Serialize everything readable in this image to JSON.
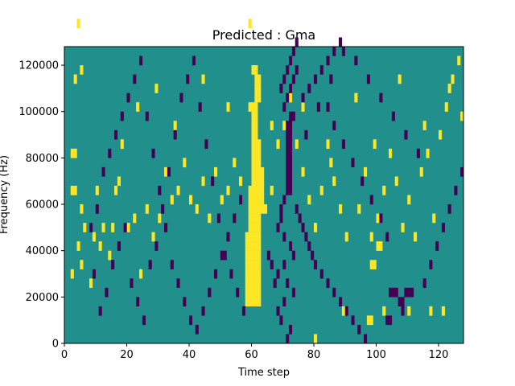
{
  "chart_data": {
    "type": "heatmap",
    "title": "Predicted : Gma",
    "xlabel": "Time step",
    "ylabel": "Frequency (Hz)",
    "xlim": [
      0,
      128
    ],
    "ylim": [
      0,
      128000
    ],
    "x_ticks": [
      0,
      20,
      40,
      60,
      80,
      100,
      120
    ],
    "y_ticks": [
      0,
      20000,
      40000,
      60000,
      80000,
      100000,
      120000
    ],
    "x_tick_labels": [
      "0",
      "20",
      "40",
      "60",
      "80",
      "100",
      "120"
    ],
    "y_tick_labels": [
      "0",
      "20000",
      "40000",
      "60000",
      "80000",
      "100000",
      "120000"
    ],
    "colormap": "viridis",
    "colors": {
      "background": "#21908d",
      "high": "#fde725",
      "low": "#440154"
    },
    "y_bin_size": 4000,
    "yellow_cells": [
      [
        58,
        4
      ],
      [
        59,
        4
      ],
      [
        60,
        4
      ],
      [
        61,
        4
      ],
      [
        62,
        4
      ],
      [
        58,
        5
      ],
      [
        59,
        5
      ],
      [
        60,
        5
      ],
      [
        61,
        5
      ],
      [
        62,
        5
      ],
      [
        58,
        6
      ],
      [
        59,
        6
      ],
      [
        60,
        6
      ],
      [
        61,
        6
      ],
      [
        62,
        6
      ],
      [
        58,
        7
      ],
      [
        59,
        7
      ],
      [
        60,
        7
      ],
      [
        61,
        7
      ],
      [
        62,
        7
      ],
      [
        58,
        8
      ],
      [
        59,
        8
      ],
      [
        60,
        8
      ],
      [
        61,
        8
      ],
      [
        62,
        8
      ],
      [
        58,
        9
      ],
      [
        59,
        9
      ],
      [
        60,
        9
      ],
      [
        61,
        9
      ],
      [
        62,
        9
      ],
      [
        58,
        10
      ],
      [
        59,
        10
      ],
      [
        60,
        10
      ],
      [
        61,
        10
      ],
      [
        62,
        10
      ],
      [
        58,
        11
      ],
      [
        59,
        11
      ],
      [
        60,
        11
      ],
      [
        61,
        11
      ],
      [
        62,
        11
      ],
      [
        59,
        12
      ],
      [
        60,
        12
      ],
      [
        61,
        12
      ],
      [
        62,
        12
      ],
      [
        59,
        13
      ],
      [
        60,
        13
      ],
      [
        61,
        13
      ],
      [
        62,
        13
      ],
      [
        59,
        14
      ],
      [
        60,
        14
      ],
      [
        61,
        14
      ],
      [
        62,
        14
      ],
      [
        63,
        14
      ],
      [
        59,
        15
      ],
      [
        60,
        15
      ],
      [
        61,
        15
      ],
      [
        62,
        15
      ],
      [
        63,
        15
      ],
      [
        59,
        16
      ],
      [
        60,
        16
      ],
      [
        61,
        16
      ],
      [
        62,
        16
      ],
      [
        63,
        16
      ],
      [
        60,
        17
      ],
      [
        61,
        17
      ],
      [
        62,
        17
      ],
      [
        63,
        17
      ],
      [
        60,
        18
      ],
      [
        61,
        18
      ],
      [
        62,
        18
      ],
      [
        63,
        18
      ],
      [
        60,
        19
      ],
      [
        61,
        19
      ],
      [
        62,
        19
      ],
      [
        60,
        20
      ],
      [
        61,
        20
      ],
      [
        62,
        20
      ],
      [
        60,
        21
      ],
      [
        61,
        21
      ],
      [
        62,
        21
      ],
      [
        60,
        22
      ],
      [
        61,
        22
      ],
      [
        60,
        23
      ],
      [
        61,
        23
      ],
      [
        60,
        24
      ],
      [
        61,
        24
      ],
      [
        59,
        25
      ],
      [
        60,
        25
      ],
      [
        61,
        25
      ],
      [
        61,
        26
      ],
      [
        62,
        26
      ],
      [
        61,
        27
      ],
      [
        62,
        27
      ],
      [
        61,
        28
      ],
      [
        62,
        28
      ],
      [
        60,
        29
      ],
      [
        61,
        29
      ],
      [
        59,
        34
      ],
      [
        2,
        20
      ],
      [
        3,
        20
      ],
      [
        2,
        16
      ],
      [
        3,
        16
      ],
      [
        5,
        14
      ],
      [
        6,
        12
      ],
      [
        4,
        10
      ],
      [
        3,
        28
      ],
      [
        5,
        29
      ],
      [
        4,
        34
      ],
      [
        2,
        7
      ],
      [
        5,
        8
      ],
      [
        8,
        6
      ],
      [
        9,
        11
      ],
      [
        11,
        10
      ],
      [
        10,
        16
      ],
      [
        12,
        12
      ],
      [
        14,
        9
      ],
      [
        15,
        12
      ],
      [
        16,
        16
      ],
      [
        17,
        17
      ],
      [
        20,
        12
      ],
      [
        22,
        13
      ],
      [
        24,
        7
      ],
      [
        26,
        14
      ],
      [
        28,
        11
      ],
      [
        30,
        13
      ],
      [
        32,
        18
      ],
      [
        34,
        15
      ],
      [
        36,
        16
      ],
      [
        38,
        19
      ],
      [
        40,
        15
      ],
      [
        42,
        14
      ],
      [
        44,
        17
      ],
      [
        46,
        13
      ],
      [
        48,
        18
      ],
      [
        50,
        15
      ],
      [
        52,
        16
      ],
      [
        54,
        19
      ],
      [
        56,
        17
      ],
      [
        64,
        14
      ],
      [
        66,
        16
      ],
      [
        70,
        23
      ],
      [
        72,
        26
      ],
      [
        74,
        21
      ],
      [
        76,
        18
      ],
      [
        78,
        15
      ],
      [
        80,
        12
      ],
      [
        82,
        16
      ],
      [
        84,
        21
      ],
      [
        86,
        17
      ],
      [
        88,
        14
      ],
      [
        90,
        11
      ],
      [
        92,
        19
      ],
      [
        94,
        14
      ],
      [
        96,
        18
      ],
      [
        98,
        11
      ],
      [
        100,
        13
      ],
      [
        102,
        16
      ],
      [
        104,
        20
      ],
      [
        106,
        17
      ],
      [
        108,
        12
      ],
      [
        110,
        15
      ],
      [
        112,
        11
      ],
      [
        114,
        18
      ],
      [
        116,
        20
      ],
      [
        118,
        13
      ],
      [
        120,
        22
      ],
      [
        122,
        25
      ],
      [
        124,
        28
      ],
      [
        126,
        30
      ],
      [
        127,
        24
      ],
      [
        66,
        23
      ],
      [
        68,
        21
      ],
      [
        76,
        25
      ],
      [
        85,
        19
      ],
      [
        93,
        26
      ],
      [
        99,
        21
      ],
      [
        107,
        28
      ],
      [
        115,
        23
      ],
      [
        123,
        27
      ],
      [
        18,
        21
      ],
      [
        23,
        25
      ],
      [
        29,
        27
      ],
      [
        35,
        23
      ],
      [
        44,
        28
      ],
      [
        52,
        25
      ],
      [
        100,
        10
      ],
      [
        101,
        10
      ],
      [
        98,
        8
      ],
      [
        99,
        8
      ],
      [
        97,
        2
      ],
      [
        98,
        2
      ],
      [
        80,
        0
      ],
      [
        89,
        3
      ],
      [
        102,
        3
      ],
      [
        110,
        3
      ],
      [
        117,
        3
      ],
      [
        121,
        3
      ]
    ],
    "purple_cells": [
      [
        71,
        16
      ],
      [
        72,
        16
      ],
      [
        71,
        17
      ],
      [
        72,
        17
      ],
      [
        71,
        18
      ],
      [
        72,
        18
      ],
      [
        71,
        19
      ],
      [
        72,
        19
      ],
      [
        71,
        20
      ],
      [
        72,
        20
      ],
      [
        71,
        21
      ],
      [
        72,
        21
      ],
      [
        71,
        22
      ],
      [
        72,
        22
      ],
      [
        71,
        23
      ],
      [
        72,
        23
      ],
      [
        72,
        24
      ],
      [
        73,
        24
      ],
      [
        70,
        15
      ],
      [
        69,
        14
      ],
      [
        69,
        13
      ],
      [
        68,
        12
      ],
      [
        70,
        11
      ],
      [
        72,
        10
      ],
      [
        73,
        9
      ],
      [
        70,
        8
      ],
      [
        68,
        7
      ],
      [
        71,
        6
      ],
      [
        73,
        5
      ],
      [
        70,
        4
      ],
      [
        68,
        3
      ],
      [
        69,
        2
      ],
      [
        72,
        1
      ],
      [
        71,
        0
      ],
      [
        74,
        14
      ],
      [
        75,
        13
      ],
      [
        76,
        12
      ],
      [
        77,
        11
      ],
      [
        78,
        10
      ],
      [
        79,
        9
      ],
      [
        80,
        8
      ],
      [
        82,
        7
      ],
      [
        84,
        6
      ],
      [
        86,
        5
      ],
      [
        88,
        4
      ],
      [
        90,
        3
      ],
      [
        92,
        2
      ],
      [
        94,
        1
      ],
      [
        96,
        0
      ],
      [
        65,
        9
      ],
      [
        66,
        8
      ],
      [
        67,
        6
      ],
      [
        69,
        27
      ],
      [
        70,
        28
      ],
      [
        71,
        29
      ],
      [
        72,
        30
      ],
      [
        73,
        31
      ],
      [
        74,
        32
      ],
      [
        76,
        26
      ],
      [
        78,
        27
      ],
      [
        80,
        28
      ],
      [
        82,
        29
      ],
      [
        84,
        30
      ],
      [
        86,
        31
      ],
      [
        88,
        32
      ],
      [
        70,
        25
      ],
      [
        71,
        26
      ],
      [
        72,
        27
      ],
      [
        73,
        28
      ],
      [
        74,
        29
      ],
      [
        8,
        12
      ],
      [
        10,
        14
      ],
      [
        12,
        18
      ],
      [
        14,
        20
      ],
      [
        16,
        22
      ],
      [
        18,
        24
      ],
      [
        20,
        26
      ],
      [
        22,
        28
      ],
      [
        24,
        30
      ],
      [
        26,
        24
      ],
      [
        28,
        20
      ],
      [
        30,
        16
      ],
      [
        32,
        12
      ],
      [
        34,
        8
      ],
      [
        36,
        6
      ],
      [
        38,
        4
      ],
      [
        40,
        2
      ],
      [
        42,
        1
      ],
      [
        44,
        3
      ],
      [
        46,
        5
      ],
      [
        48,
        7
      ],
      [
        50,
        9
      ],
      [
        52,
        11
      ],
      [
        54,
        13
      ],
      [
        56,
        15
      ],
      [
        9,
        7
      ],
      [
        11,
        3
      ],
      [
        13,
        5
      ],
      [
        15,
        8
      ],
      [
        17,
        10
      ],
      [
        19,
        12
      ],
      [
        21,
        6
      ],
      [
        23,
        4
      ],
      [
        25,
        2
      ],
      [
        27,
        8
      ],
      [
        29,
        10
      ],
      [
        31,
        14
      ],
      [
        33,
        18
      ],
      [
        35,
        22
      ],
      [
        37,
        26
      ],
      [
        39,
        28
      ],
      [
        41,
        30
      ],
      [
        43,
        25
      ],
      [
        45,
        21
      ],
      [
        47,
        17
      ],
      [
        49,
        13
      ],
      [
        51,
        9
      ],
      [
        53,
        7
      ],
      [
        55,
        5
      ],
      [
        57,
        3
      ],
      [
        104,
        5
      ],
      [
        105,
        5
      ],
      [
        106,
        5
      ],
      [
        107,
        4
      ],
      [
        108,
        4
      ],
      [
        109,
        5
      ],
      [
        110,
        5
      ],
      [
        111,
        5
      ],
      [
        103,
        2
      ],
      [
        104,
        2
      ],
      [
        108,
        3
      ],
      [
        115,
        6
      ],
      [
        117,
        8
      ],
      [
        119,
        10
      ],
      [
        121,
        12
      ],
      [
        123,
        14
      ],
      [
        125,
        16
      ],
      [
        127,
        18
      ],
      [
        113,
        20
      ],
      [
        109,
        22
      ],
      [
        105,
        24
      ],
      [
        101,
        26
      ],
      [
        97,
        28
      ],
      [
        93,
        30
      ],
      [
        89,
        31
      ],
      [
        85,
        28
      ],
      [
        81,
        25
      ],
      [
        77,
        22
      ],
      [
        84,
        25
      ],
      [
        86,
        23
      ],
      [
        89,
        21
      ],
      [
        92,
        19
      ],
      [
        95,
        17
      ],
      [
        98,
        15
      ],
      [
        101,
        13
      ],
      [
        103,
        11
      ]
    ]
  }
}
